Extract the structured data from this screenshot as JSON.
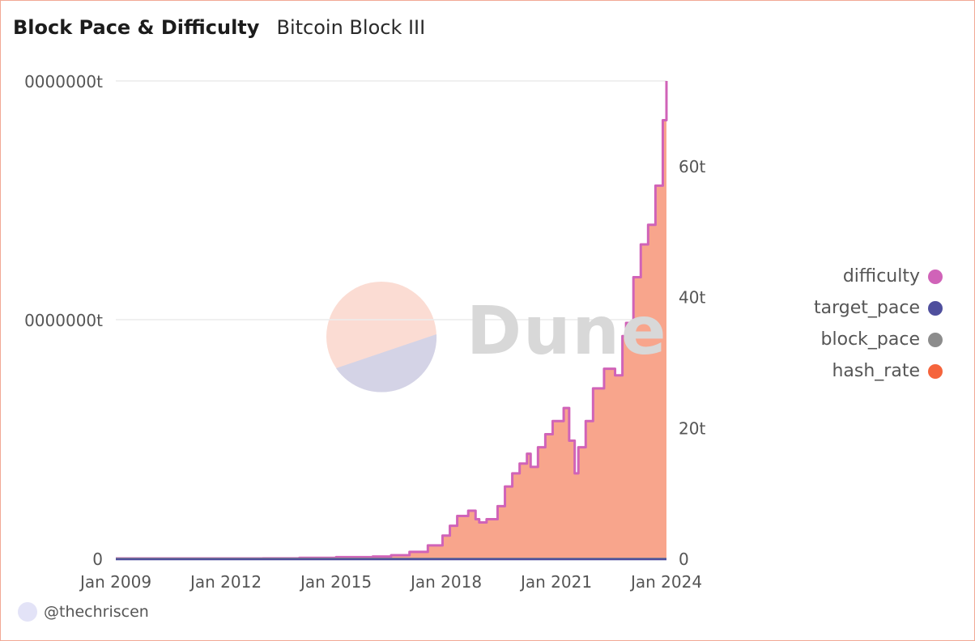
{
  "header": {
    "title": "Block Pace & Difficulty",
    "subtitle": "Bitcoin Block III"
  },
  "watermark": {
    "text": "Dune"
  },
  "footer": {
    "author": "@thechriscen"
  },
  "colors": {
    "difficulty": "#d063b8",
    "target_pace": "#4f4f9d",
    "block_pace": "#8c8c8c",
    "hash_rate": "#f5643c",
    "hash_rate_fill": "#f8a58c",
    "grid": "#ececec",
    "axis_text": "#555555"
  },
  "legend": [
    {
      "label": "difficulty",
      "color": "#d063b8"
    },
    {
      "label": "target_pace",
      "color": "#4f4f9d"
    },
    {
      "label": "block_pace",
      "color": "#8c8c8c"
    },
    {
      "label": "hash_rate",
      "color": "#f5643c"
    }
  ],
  "chart_data": {
    "type": "area",
    "title": "Block Pace & Difficulty",
    "xlabel": "",
    "x_ticks": [
      "Jan 2009",
      "Jan 2012",
      "Jan 2015",
      "Jan 2018",
      "Jan 2021",
      "Jan 2024"
    ],
    "xlim": [
      2009.0,
      2024.0
    ],
    "y_left": {
      "ticks": [
        "0",
        "0000000t",
        "0000000t"
      ],
      "ylim": [
        0,
        1000000000
      ]
    },
    "y_right": {
      "ticks": [
        "0",
        "20t",
        "40t",
        "60t"
      ],
      "ylim": [
        0,
        73
      ]
    },
    "series": [
      {
        "name": "difficulty",
        "axis": "right",
        "x": [
          2009.0,
          2013.0,
          2014.0,
          2015.0,
          2016.0,
          2016.5,
          2017.0,
          2017.5,
          2017.9,
          2018.1,
          2018.3,
          2018.6,
          2018.8,
          2018.9,
          2019.1,
          2019.4,
          2019.6,
          2019.8,
          2020.0,
          2020.2,
          2020.3,
          2020.5,
          2020.7,
          2020.9,
          2021.2,
          2021.35,
          2021.5,
          2021.6,
          2021.8,
          2022.0,
          2022.3,
          2022.6,
          2022.8,
          2022.9,
          2023.1,
          2023.3,
          2023.5,
          2023.7,
          2023.9,
          2024.0
        ],
        "values": [
          0,
          0.02,
          0.1,
          0.2,
          0.3,
          0.5,
          1.0,
          2.0,
          3.5,
          5.0,
          6.5,
          7.3,
          6.0,
          5.5,
          6.0,
          8.0,
          11.0,
          13.0,
          14.5,
          16.0,
          14.0,
          17.0,
          19.0,
          21.0,
          23.0,
          18.0,
          13.0,
          17.0,
          21.0,
          26.0,
          29.0,
          28.0,
          34.0,
          36.0,
          43.0,
          48.0,
          51.0,
          57.0,
          67.0,
          73.0
        ]
      },
      {
        "name": "hash_rate",
        "axis": "right",
        "x": [
          2009.0,
          2013.0,
          2014.0,
          2015.0,
          2016.0,
          2016.5,
          2017.0,
          2017.5,
          2017.9,
          2018.1,
          2018.3,
          2018.6,
          2018.8,
          2018.9,
          2019.1,
          2019.4,
          2019.6,
          2019.8,
          2020.0,
          2020.2,
          2020.3,
          2020.5,
          2020.7,
          2020.9,
          2021.2,
          2021.35,
          2021.5,
          2021.6,
          2021.8,
          2022.0,
          2022.3,
          2022.6,
          2022.8,
          2022.9,
          2023.1,
          2023.3,
          2023.5,
          2023.7,
          2023.9,
          2024.0
        ],
        "values": [
          0,
          0.02,
          0.1,
          0.2,
          0.3,
          0.5,
          1.0,
          2.0,
          3.5,
          5.0,
          6.5,
          7.3,
          6.0,
          5.5,
          6.0,
          8.0,
          11.0,
          13.0,
          14.5,
          16.0,
          14.0,
          17.0,
          19.0,
          21.0,
          23.0,
          18.0,
          13.0,
          17.0,
          21.0,
          26.0,
          29.0,
          28.0,
          34.0,
          36.0,
          43.0,
          48.0,
          51.0,
          57.0,
          67.0,
          73.0
        ]
      },
      {
        "name": "target_pace",
        "axis": "left",
        "x": [
          2009.0,
          2024.0
        ],
        "values": [
          0,
          0
        ]
      },
      {
        "name": "block_pace",
        "axis": "left",
        "x": [
          2009.0,
          2024.0
        ],
        "values": [
          0,
          0
        ]
      }
    ]
  }
}
